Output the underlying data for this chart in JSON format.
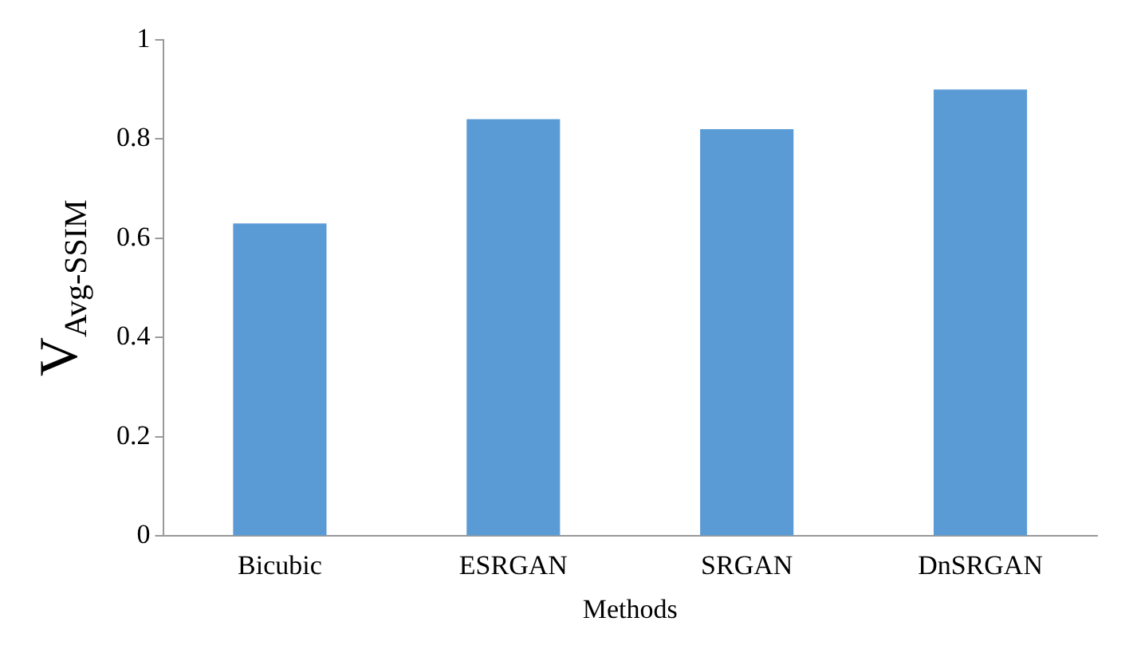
{
  "chart_data": {
    "type": "bar",
    "xlabel": "Methods",
    "ylabel": "V$_{Avg-SSIM}$",
    "categories": [
      "Bicubic",
      "ESRGAN",
      "SRGAN",
      "DnSRGAN"
    ],
    "values": [
      0.63,
      0.84,
      0.82,
      0.9
    ],
    "color": "#5b9bd5",
    "ylim": [
      0,
      1
    ],
    "yticks": [
      0,
      0.2,
      0.4,
      0.6,
      0.8,
      1
    ],
    "grid": false,
    "legend": false
  }
}
